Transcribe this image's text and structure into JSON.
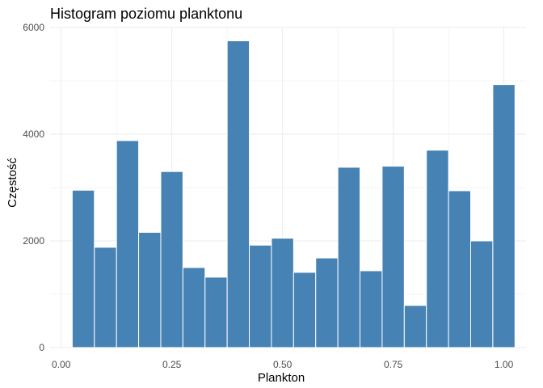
{
  "chart_data": {
    "type": "bar",
    "subtype": "histogram",
    "title": "Histogram poziomu planktonu",
    "xlabel": "Plankton",
    "ylabel": "Częstość",
    "bin_width": 0.05,
    "bins": [
      {
        "x0": 0.025,
        "x1": 0.075,
        "count": 2950
      },
      {
        "x0": 0.075,
        "x1": 0.125,
        "count": 1880
      },
      {
        "x0": 0.125,
        "x1": 0.175,
        "count": 3880
      },
      {
        "x0": 0.175,
        "x1": 0.225,
        "count": 2160
      },
      {
        "x0": 0.225,
        "x1": 0.275,
        "count": 3300
      },
      {
        "x0": 0.275,
        "x1": 0.325,
        "count": 1500
      },
      {
        "x0": 0.325,
        "x1": 0.375,
        "count": 1320
      },
      {
        "x0": 0.375,
        "x1": 0.425,
        "count": 5750
      },
      {
        "x0": 0.425,
        "x1": 0.475,
        "count": 1920
      },
      {
        "x0": 0.475,
        "x1": 0.525,
        "count": 2050
      },
      {
        "x0": 0.525,
        "x1": 0.575,
        "count": 1410
      },
      {
        "x0": 0.575,
        "x1": 0.625,
        "count": 1680
      },
      {
        "x0": 0.625,
        "x1": 0.675,
        "count": 3380
      },
      {
        "x0": 0.675,
        "x1": 0.725,
        "count": 1440
      },
      {
        "x0": 0.725,
        "x1": 0.775,
        "count": 3400
      },
      {
        "x0": 0.775,
        "x1": 0.825,
        "count": 790
      },
      {
        "x0": 0.825,
        "x1": 0.875,
        "count": 3700
      },
      {
        "x0": 0.875,
        "x1": 0.925,
        "count": 2940
      },
      {
        "x0": 0.925,
        "x1": 0.975,
        "count": 2000
      },
      {
        "x0": 0.975,
        "x1": 1.025,
        "count": 4930
      }
    ],
    "xlim": [
      -0.025,
      1.05
    ],
    "ylim": [
      0,
      6000
    ],
    "x_ticks": [
      0.0,
      0.25,
      0.5,
      0.75,
      1.0
    ],
    "x_tick_labels": [
      "0.00",
      "0.25",
      "0.50",
      "0.75",
      "1.00"
    ],
    "y_ticks": [
      0,
      2000,
      4000,
      6000
    ],
    "y_tick_labels": [
      "0",
      "2000",
      "4000",
      "6000"
    ],
    "bar_color": "#4682B4",
    "bar_border_color": "#FFFFFF",
    "grid": true,
    "legend": "none"
  }
}
